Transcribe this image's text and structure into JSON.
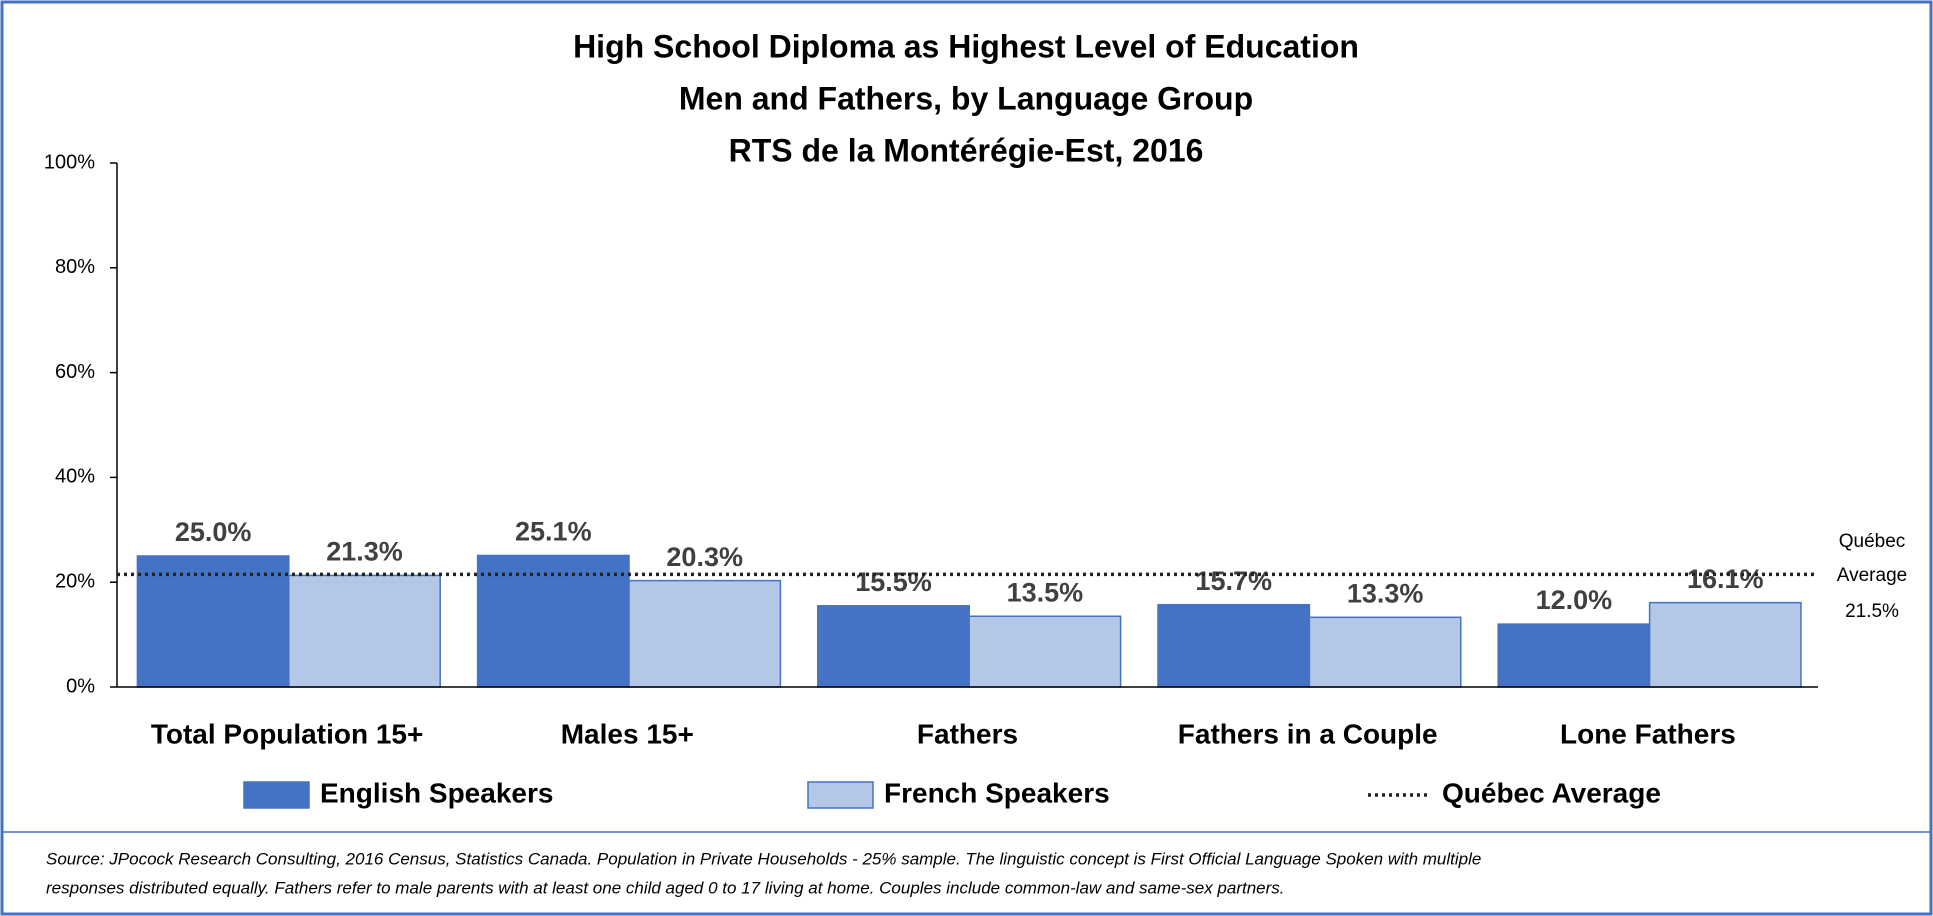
{
  "chart_data": {
    "type": "bar",
    "title": [
      "High School Diploma as Highest Level of Education",
      "Men and Fathers, by Language Group",
      "RTS de la Montérégie-Est, 2016"
    ],
    "categories": [
      "Total Population 15+",
      "Males 15+",
      "Fathers",
      "Fathers in a Couple",
      "Lone Fathers"
    ],
    "series": [
      {
        "name": "English Speakers",
        "color": "#4472c4",
        "values": [
          25.0,
          25.1,
          15.5,
          15.7,
          12.0
        ],
        "value_labels": [
          "25.0%",
          "25.1%",
          "15.5%",
          "15.7%",
          "12.0%"
        ]
      },
      {
        "name": "French Speakers",
        "color": "#b4c7e7",
        "values": [
          21.3,
          20.3,
          13.5,
          13.3,
          16.1
        ],
        "value_labels": [
          "21.3%",
          "20.3%",
          "13.5%",
          "13.3%",
          "16.1%"
        ]
      }
    ],
    "reference_line": {
      "name": "Québec Average",
      "value": 21.5,
      "value_label": "21.5%",
      "color": "#222222"
    },
    "ylim": [
      0,
      100
    ],
    "yticks": [
      {
        "value": 0,
        "label": "0%"
      },
      {
        "value": 20,
        "label": "20%"
      },
      {
        "value": 40,
        "label": "40%"
      },
      {
        "value": 60,
        "label": "60%"
      },
      {
        "value": 80,
        "label": "80%"
      },
      {
        "value": 100,
        "label": "100%"
      }
    ],
    "legend": "bottom",
    "source": [
      "Source: JPocock Research Consulting, 2016 Census, Statistics Canada. Population in Private Households - 25% sample. The linguistic concept is First Official Language Spoken with multiple",
      "responses distributed equally. Fathers refer to male parents with at least one child aged 0 to 17 living at home. Couples include common-law and same-sex partners."
    ]
  }
}
